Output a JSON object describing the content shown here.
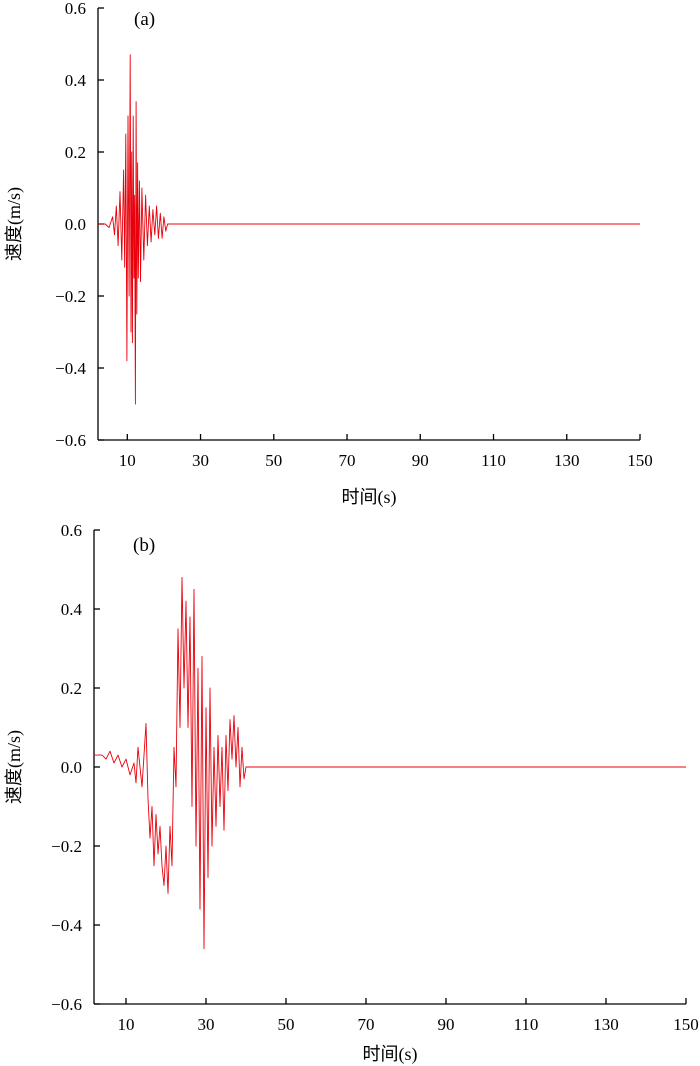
{
  "chart_data": [
    {
      "type": "line",
      "panel_label": "(a)",
      "xlabel": "时间(s)",
      "ylabel": "速度(m/s)",
      "xlim": [
        2,
        150
      ],
      "ylim": [
        -0.6,
        0.6
      ],
      "xticks": [
        10,
        30,
        50,
        70,
        90,
        110,
        130,
        150
      ],
      "xtick_labels": [
        "10",
        "30",
        "50",
        "70",
        "90",
        "110",
        "130",
        "150"
      ],
      "yticks": [
        0.6,
        0.4,
        0.2,
        0.0,
        -0.2,
        -0.4,
        -0.6
      ],
      "ytick_labels": [
        "0.6",
        "0.4",
        "0.2",
        "0.0",
        "−0.2",
        "−0.4",
        "−0.6"
      ],
      "grid": false,
      "series": [
        {
          "color": "#e8000b",
          "x": [
            2,
            4,
            5,
            6,
            6.5,
            7,
            7.5,
            8,
            8.5,
            9,
            9.3,
            9.6,
            9.9,
            10.2,
            10.5,
            10.8,
            11,
            11.2,
            11.4,
            11.6,
            11.8,
            12,
            12.2,
            12.4,
            12.6,
            12.8,
            13,
            13.3,
            13.6,
            14,
            14.5,
            15,
            15.5,
            16,
            16.5,
            17,
            17.5,
            18,
            18.5,
            19,
            19.5,
            20,
            20.5,
            21,
            21.5,
            30,
            60,
            90,
            120,
            150
          ],
          "y": [
            0.0,
            0.0,
            -0.01,
            0.02,
            -0.03,
            0.05,
            -0.06,
            0.09,
            -0.1,
            0.15,
            -0.12,
            0.25,
            -0.38,
            0.3,
            -0.2,
            0.47,
            -0.3,
            0.2,
            -0.33,
            0.3,
            -0.15,
            0.08,
            -0.5,
            0.34,
            -0.25,
            0.17,
            -0.15,
            0.12,
            -0.16,
            0.1,
            -0.1,
            0.08,
            -0.06,
            0.05,
            -0.05,
            0.04,
            -0.03,
            0.05,
            -0.04,
            0.03,
            -0.04,
            0.02,
            -0.02,
            0.0,
            0.0,
            0.0,
            0.0,
            0.0,
            0.0,
            0.0
          ]
        }
      ]
    },
    {
      "type": "line",
      "panel_label": "(b)",
      "xlabel": "时间(s)",
      "ylabel": "速度(m/s)",
      "xlim": [
        2,
        150
      ],
      "ylim": [
        -0.6,
        0.6
      ],
      "xticks": [
        10,
        30,
        50,
        70,
        90,
        110,
        130,
        150
      ],
      "xtick_labels": [
        "10",
        "30",
        "50",
        "70",
        "90",
        "110",
        "130",
        "150"
      ],
      "yticks": [
        0.6,
        0.4,
        0.2,
        0.0,
        -0.2,
        -0.4,
        -0.6
      ],
      "ytick_labels": [
        "0.6",
        "0.4",
        "0.2",
        "0.0",
        "−0.2",
        "−0.4",
        "−0.6"
      ],
      "grid": false,
      "series": [
        {
          "color": "#e8000b",
          "x": [
            2,
            4,
            5,
            6,
            7,
            8,
            9,
            10,
            11,
            12,
            12.5,
            13,
            14,
            15,
            15.5,
            16,
            16.5,
            17,
            17.5,
            18,
            18.5,
            19,
            19.5,
            20,
            20.5,
            21,
            21.5,
            22,
            22.5,
            23,
            23.5,
            24,
            24.5,
            25,
            25.5,
            26,
            26.5,
            27,
            27.5,
            28,
            28.5,
            29,
            29.5,
            30,
            30.5,
            31,
            31.5,
            32,
            32.5,
            33,
            33.5,
            34,
            34.5,
            35,
            35.5,
            36,
            36.5,
            37,
            37.5,
            38,
            38.5,
            39,
            39.5,
            40,
            60,
            90,
            120,
            150
          ],
          "y": [
            0.03,
            0.03,
            0.02,
            0.04,
            0.01,
            0.03,
            0.0,
            0.02,
            -0.02,
            0.01,
            -0.04,
            0.05,
            -0.05,
            0.11,
            -0.08,
            -0.18,
            -0.1,
            -0.25,
            -0.12,
            -0.22,
            -0.15,
            -0.25,
            -0.3,
            -0.2,
            -0.32,
            -0.15,
            -0.25,
            0.05,
            -0.05,
            0.35,
            0.1,
            0.48,
            0.2,
            0.42,
            0.1,
            0.38,
            -0.1,
            0.45,
            -0.2,
            0.25,
            -0.36,
            0.28,
            -0.46,
            0.15,
            -0.28,
            0.2,
            -0.2,
            0.05,
            -0.15,
            0.08,
            -0.1,
            0.05,
            -0.16,
            0.08,
            -0.06,
            0.12,
            0.02,
            0.13,
            0.0,
            0.1,
            -0.05,
            0.05,
            -0.03,
            0.0,
            0.0,
            0.0,
            0.0,
            0.0
          ]
        }
      ]
    }
  ]
}
